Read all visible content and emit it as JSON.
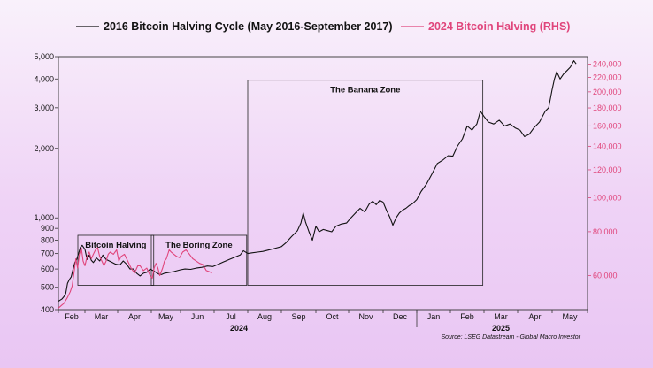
{
  "chart_data": {
    "type": "line",
    "legend_position": "top",
    "grid": false,
    "x_axis": {
      "ticks": [
        "Feb",
        "Mar",
        "Apr",
        "May",
        "Jun",
        "Jul",
        "Aug",
        "Sep",
        "Oct",
        "Nov",
        "Dec",
        "Jan",
        "Feb",
        "Mar",
        "Apr",
        "May"
      ],
      "year_labels": [
        "2024",
        "2025"
      ]
    },
    "y_left": {
      "scale": "log",
      "range": [
        400,
        5000
      ],
      "ticks": [
        "400",
        "500",
        "600",
        "700",
        "800",
        "900",
        "1,000",
        "2,000",
        "3,000",
        "4,000",
        "5,000"
      ]
    },
    "y_right": {
      "scale": "log",
      "range": [
        48000,
        252000
      ],
      "ticks": [
        "60,000",
        "80,000",
        "100,000",
        "120,000",
        "140,000",
        "160,000",
        "180,000",
        "200,000",
        "220,000",
        "240,000"
      ]
    },
    "series": [
      {
        "name": "2016 Bitcoin Halving Cycle (May 2016-September 2017)",
        "axis": "left",
        "color": "#111111",
        "points": [
          [
            "Feb 1",
            435
          ],
          [
            "Feb 3",
            440
          ],
          [
            "Feb 5",
            445
          ],
          [
            "Feb 7",
            455
          ],
          [
            "Feb 9",
            470
          ],
          [
            "Feb 11",
            520
          ],
          [
            "Feb 13",
            540
          ],
          [
            "Feb 15",
            555
          ],
          [
            "Feb 17",
            600
          ],
          [
            "Feb 19",
            640
          ],
          [
            "Feb 21",
            660
          ],
          [
            "Feb 23",
            700
          ],
          [
            "Feb 25",
            745
          ],
          [
            "Feb 27",
            760
          ],
          [
            "Mar 1",
            730
          ],
          [
            "Mar 3",
            660
          ],
          [
            "Mar 5",
            690
          ],
          [
            "Mar 7",
            655
          ],
          [
            "Mar 9",
            640
          ],
          [
            "Mar 12",
            670
          ],
          [
            "Mar 15",
            650
          ],
          [
            "Mar 18",
            690
          ],
          [
            "Mar 21",
            660
          ],
          [
            "Mar 24",
            650
          ],
          [
            "Mar 27",
            640
          ],
          [
            "Mar 30",
            630
          ],
          [
            "Apr 3",
            625
          ],
          [
            "Apr 6",
            650
          ],
          [
            "Apr 9",
            630
          ],
          [
            "Apr 12",
            600
          ],
          [
            "Apr 15",
            600
          ],
          [
            "Apr 18",
            575
          ],
          [
            "Apr 21",
            560
          ],
          [
            "Apr 24",
            575
          ],
          [
            "Apr 27",
            580
          ],
          [
            "Apr 30",
            600
          ],
          [
            "May 3",
            590
          ],
          [
            "May 6",
            580
          ],
          [
            "May 9",
            570
          ],
          [
            "May 12",
            568
          ],
          [
            "May 15",
            575
          ],
          [
            "May 20",
            580
          ],
          [
            "May 25",
            585
          ],
          [
            "Jun 1",
            595
          ],
          [
            "Jun 5",
            600
          ],
          [
            "Jun 10",
            598
          ],
          [
            "Jun 15",
            605
          ],
          [
            "Jun 20",
            610
          ],
          [
            "Jun 25",
            618
          ],
          [
            "Jun 30",
            615
          ],
          [
            "Jul 5",
            630
          ],
          [
            "Jul 10",
            645
          ],
          [
            "Jul 15",
            660
          ],
          [
            "Jul 20",
            675
          ],
          [
            "Jul 25",
            690
          ],
          [
            "Jul 28",
            720
          ],
          [
            "Aug 1",
            700
          ],
          [
            "Aug 5",
            705
          ],
          [
            "Aug 10",
            710
          ],
          [
            "Aug 15",
            715
          ],
          [
            "Aug 20",
            725
          ],
          [
            "Aug 25",
            735
          ],
          [
            "Sep 1",
            750
          ],
          [
            "Sep 5",
            780
          ],
          [
            "Sep 10",
            830
          ],
          [
            "Sep 15",
            880
          ],
          [
            "Sep 18",
            950
          ],
          [
            "Sep 20",
            1050
          ],
          [
            "Sep 22",
            960
          ],
          [
            "Sep 25",
            870
          ],
          [
            "Sep 28",
            800
          ],
          [
            "Oct 1",
            920
          ],
          [
            "Oct 4",
            870
          ],
          [
            "Oct 8",
            890
          ],
          [
            "Oct 12",
            880
          ],
          [
            "Oct 16",
            870
          ],
          [
            "Oct 20",
            920
          ],
          [
            "Oct 25",
            940
          ],
          [
            "Oct 30",
            950
          ],
          [
            "Nov 3",
            1000
          ],
          [
            "Nov 7",
            1050
          ],
          [
            "Nov 11",
            1100
          ],
          [
            "Nov 15",
            1060
          ],
          [
            "Nov 19",
            1150
          ],
          [
            "Nov 22",
            1180
          ],
          [
            "Nov 25",
            1140
          ],
          [
            "Nov 28",
            1190
          ],
          [
            "Dec 1",
            1170
          ],
          [
            "Dec 4",
            1080
          ],
          [
            "Dec 7",
            1010
          ],
          [
            "Dec 10",
            930
          ],
          [
            "Dec 13",
            1000
          ],
          [
            "Dec 16",
            1050
          ],
          [
            "Dec 19",
            1080
          ],
          [
            "Dec 22",
            1100
          ],
          [
            "Dec 25",
            1130
          ],
          [
            "Dec 28",
            1150
          ],
          [
            "Jan 1",
            1200
          ],
          [
            "Jan 5",
            1300
          ],
          [
            "Jan 10",
            1400
          ],
          [
            "Jan 15",
            1550
          ],
          [
            "Jan 20",
            1720
          ],
          [
            "Jan 25",
            1780
          ],
          [
            "Jan 30",
            1860
          ],
          [
            "Feb 3",
            1850
          ],
          [
            "Feb 7",
            2050
          ],
          [
            "Feb 11",
            2200
          ],
          [
            "Feb 15",
            2500
          ],
          [
            "Feb 19",
            2400
          ],
          [
            "Feb 23",
            2550
          ],
          [
            "Feb 26",
            2900
          ],
          [
            "Mar 1",
            2750
          ],
          [
            "Mar 5",
            2600
          ],
          [
            "Mar 10",
            2550
          ],
          [
            "Mar 15",
            2650
          ],
          [
            "Mar 20",
            2500
          ],
          [
            "Mar 25",
            2550
          ],
          [
            "Mar 30",
            2450
          ],
          [
            "Apr 3",
            2400
          ],
          [
            "Apr 7",
            2250
          ],
          [
            "Apr 11",
            2300
          ],
          [
            "Apr 15",
            2450
          ],
          [
            "Apr 20",
            2600
          ],
          [
            "Apr 25",
            2900
          ],
          [
            "Apr 28",
            3000
          ],
          [
            "May 1",
            3600
          ],
          [
            "May 3",
            4000
          ],
          [
            "May 5",
            4300
          ],
          [
            "May 8",
            4000
          ],
          [
            "May 11",
            4200
          ],
          [
            "May 14",
            4350
          ],
          [
            "May 17",
            4500
          ],
          [
            "May 20",
            4800
          ],
          [
            "May 22",
            4650
          ]
        ]
      },
      {
        "name": "2024 Bitcoin Halving (RHS)",
        "axis": "right",
        "color": "#e0457b",
        "points": [
          [
            "Feb 1",
            48500
          ],
          [
            "Feb 3",
            49000
          ],
          [
            "Feb 5",
            49500
          ],
          [
            "Feb 7",
            50000
          ],
          [
            "Feb 9",
            51000
          ],
          [
            "Feb 11",
            52000
          ],
          [
            "Feb 14",
            54000
          ],
          [
            "Feb 16",
            56000
          ],
          [
            "Feb 18",
            61000
          ],
          [
            "Feb 20",
            67000
          ],
          [
            "Feb 22",
            63000
          ],
          [
            "Feb 24",
            69000
          ],
          [
            "Feb 26",
            72000
          ],
          [
            "Feb 28",
            66000
          ],
          [
            "Mar 1",
            64000
          ],
          [
            "Mar 3",
            68000
          ],
          [
            "Mar 5",
            70000
          ],
          [
            "Mar 7",
            67000
          ],
          [
            "Mar 9",
            69000
          ],
          [
            "Mar 11",
            71000
          ],
          [
            "Mar 13",
            72000
          ],
          [
            "Mar 15",
            68000
          ],
          [
            "Mar 17",
            66000
          ],
          [
            "Mar 19",
            64000
          ],
          [
            "Mar 21",
            66000
          ],
          [
            "Mar 23",
            69000
          ],
          [
            "Mar 25",
            70000
          ],
          [
            "Mar 28",
            69000
          ],
          [
            "Mar 31",
            71000
          ],
          [
            "Apr 2",
            66000
          ],
          [
            "Apr 4",
            68000
          ],
          [
            "Apr 7",
            69000
          ],
          [
            "Apr 10",
            66000
          ],
          [
            "Apr 13",
            63000
          ],
          [
            "Apr 16",
            61000
          ],
          [
            "Apr 19",
            64000
          ],
          [
            "Apr 21",
            64000
          ],
          [
            "Apr 24",
            62000
          ],
          [
            "Apr 27",
            63000
          ],
          [
            "Apr 30",
            60000
          ],
          [
            "May 2",
            59000
          ],
          [
            "May 4",
            63000
          ],
          [
            "May 6",
            65000
          ],
          [
            "May 8",
            63000
          ],
          [
            "May 10",
            60000
          ],
          [
            "May 13",
            63000
          ],
          [
            "May 15",
            66000
          ],
          [
            "May 17",
            67000
          ],
          [
            "May 20",
            71000
          ],
          [
            "May 22",
            70000
          ],
          [
            "May 25",
            69000
          ],
          [
            "May 28",
            68000
          ],
          [
            "May 31",
            67500
          ],
          [
            "Jun 3",
            70000
          ],
          [
            "Jun 6",
            71000
          ],
          [
            "Jun 9",
            69000
          ],
          [
            "Jun 12",
            67000
          ],
          [
            "Jun 15",
            66000
          ],
          [
            "Jun 18",
            65000
          ],
          [
            "Jun 21",
            64500
          ],
          [
            "Jun 24",
            62000
          ],
          [
            "Jun 27",
            61500
          ],
          [
            "Jun 29",
            61000
          ]
        ]
      }
    ],
    "annotations": [
      {
        "label": "Bitcoin Halving",
        "from": "Feb 1",
        "to": "Apr 30",
        "y_from": 510,
        "y_to": 840
      },
      {
        "label": "The Boring Zone",
        "from": "May 1",
        "to": "Jul 31",
        "y_from": 510,
        "y_to": 840
      },
      {
        "label": "The Banana Zone",
        "from": "Aug 1",
        "to": "Feb 28",
        "y_from": 510,
        "y_to": 3950
      }
    ],
    "source": "Source: LSEG Datastream - Global Macro Investor"
  }
}
